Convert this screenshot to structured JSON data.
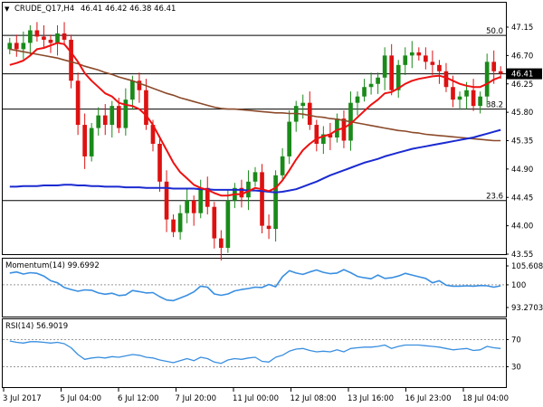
{
  "header": {
    "symbol": "CRUDE_Q17,H4",
    "ohlc": "46.41 46.42 46.38 46.41",
    "momentum_label": "Momentum(14) 99.6992",
    "rsi_label": "RSI(14) 56.9019"
  },
  "colors": {
    "up_candle": "#1a8a1a",
    "down_candle": "#dd1111",
    "sma_fast": "#ee1111",
    "sma_mid": "#8b4a2a",
    "sma_slow": "#1a2ad0",
    "momentum": "#3a8fe0",
    "rsi": "#3a8fe0",
    "level_line": "#000000"
  },
  "chart_data": [
    {
      "type": "candlestick",
      "panel": "price",
      "ylim": [
        43.55,
        47.15
      ],
      "y_ticks": [
        "47.15",
        "46.70",
        "46.25",
        "45.80",
        "45.35",
        "44.90",
        "44.45",
        "44.00",
        "43.55"
      ],
      "last_price_label": "46.41",
      "last_price": 46.41,
      "fib_levels": [
        {
          "label": "50.0",
          "value": 47.02
        },
        {
          "label": "38.2",
          "value": 45.85
        },
        {
          "label": "23.6",
          "value": 44.4
        }
      ],
      "horizontal_line": 46.41,
      "x_labels": [
        "3 Jul 2017",
        "5 Jul 04:00",
        "6 Jul 12:00",
        "7 Jul 20:00",
        "11 Jul 00:00",
        "12 Jul 08:00",
        "13 Jul 16:00",
        "16 Jul 23:00",
        "18 Jul 04:00"
      ],
      "closes": [
        46.9,
        46.8,
        46.9,
        47.1,
        47.0,
        46.95,
        46.9,
        47.05,
        46.95,
        46.3,
        45.6,
        45.1,
        45.55,
        45.75,
        45.6,
        45.9,
        45.55,
        46.0,
        46.3,
        46.15,
        45.6,
        45.3,
        44.7,
        44.1,
        43.9,
        44.2,
        44.4,
        44.2,
        44.6,
        44.3,
        43.8,
        43.65,
        44.4,
        44.6,
        44.45,
        44.7,
        44.85,
        44.0,
        43.95,
        44.8,
        45.1,
        45.65,
        45.9,
        45.95,
        45.6,
        45.3,
        45.45,
        45.4,
        45.7,
        45.35,
        45.95,
        46.05,
        46.2,
        46.25,
        46.35,
        46.7,
        46.15,
        46.55,
        46.7,
        46.75,
        46.7,
        46.6,
        46.55,
        46.45,
        46.2,
        46.0,
        46.05,
        46.15,
        45.9,
        46.05,
        46.6,
        46.45,
        46.41
      ],
      "overlays": {
        "sma_fast": [
          46.55,
          46.58,
          46.62,
          46.7,
          46.8,
          46.82,
          46.86,
          46.9,
          46.88,
          46.75,
          46.6,
          46.42,
          46.3,
          46.2,
          46.1,
          46.05,
          45.95,
          45.92,
          45.9,
          45.85,
          45.75,
          45.6,
          45.4,
          45.2,
          45.0,
          44.85,
          44.75,
          44.65,
          44.6,
          44.57,
          44.52,
          44.48,
          44.48,
          44.5,
          44.5,
          44.55,
          44.6,
          44.58,
          44.55,
          44.6,
          44.72,
          44.88,
          45.05,
          45.2,
          45.3,
          45.38,
          45.42,
          45.45,
          45.52,
          45.55,
          45.62,
          45.72,
          45.82,
          45.92,
          46.0,
          46.1,
          46.12,
          46.18,
          46.25,
          46.3,
          46.33,
          46.35,
          46.37,
          46.38,
          46.35,
          46.3,
          46.25,
          46.22,
          46.2,
          46.2,
          46.25,
          46.32,
          46.36
        ],
        "sma_mid": [
          46.8,
          46.78,
          46.76,
          46.74,
          46.72,
          46.7,
          46.68,
          46.66,
          46.63,
          46.6,
          46.57,
          46.53,
          46.5,
          46.47,
          46.43,
          46.4,
          46.36,
          46.33,
          46.3,
          46.26,
          46.22,
          46.18,
          46.14,
          46.1,
          46.07,
          46.03,
          46.0,
          45.97,
          45.94,
          45.91,
          45.88,
          45.86,
          45.85,
          45.85,
          45.84,
          45.83,
          45.82,
          45.81,
          45.8,
          45.79,
          45.79,
          45.78,
          45.78,
          45.77,
          45.75,
          45.73,
          45.72,
          45.7,
          45.69,
          45.67,
          45.65,
          45.63,
          45.61,
          45.59,
          45.57,
          45.55,
          45.53,
          45.51,
          45.5,
          45.48,
          45.47,
          45.45,
          45.44,
          45.43,
          45.42,
          45.41,
          45.4,
          45.39,
          45.38,
          45.37,
          45.36,
          45.35,
          45.35
        ],
        "sma_slow": [
          44.62,
          44.62,
          44.63,
          44.63,
          44.63,
          44.64,
          44.64,
          44.64,
          44.65,
          44.65,
          44.64,
          44.64,
          44.63,
          44.63,
          44.62,
          44.62,
          44.62,
          44.61,
          44.61,
          44.61,
          44.6,
          44.6,
          44.6,
          44.6,
          44.59,
          44.59,
          44.59,
          44.59,
          44.58,
          44.58,
          44.57,
          44.57,
          44.57,
          44.57,
          44.57,
          44.56,
          44.56,
          44.55,
          44.54,
          44.53,
          44.54,
          44.56,
          44.58,
          44.62,
          44.66,
          44.7,
          44.75,
          44.8,
          44.84,
          44.88,
          44.92,
          44.96,
          45.0,
          45.03,
          45.06,
          45.1,
          45.13,
          45.16,
          45.19,
          45.22,
          45.24,
          45.26,
          45.28,
          45.3,
          45.32,
          45.34,
          45.36,
          45.38,
          45.4,
          45.43,
          45.46,
          45.49,
          45.52
        ]
      }
    },
    {
      "type": "line",
      "panel": "momentum",
      "title": "Momentum(14) 99.6992",
      "ylim": [
        93.2703,
        105.6089
      ],
      "y_ticks": [
        "105.6089",
        "100",
        "93.2703"
      ],
      "reference_line": 100,
      "values": [
        103.5,
        103.8,
        103.2,
        103.6,
        103.4,
        102.6,
        101.2,
        100.6,
        99.2,
        98.6,
        98.1,
        98.5,
        98.4,
        97.6,
        97.2,
        97.5,
        96.8,
        97.0,
        98.3,
        98.0,
        97.6,
        97.7,
        96.5,
        95.5,
        95.3,
        96.1,
        96.9,
        97.9,
        99.6,
        99.3,
        97.3,
        96.9,
        97.3,
        98.2,
        98.6,
        98.9,
        99.3,
        99.2,
        100.1,
        99.4,
        102.4,
        104.2,
        103.5,
        103.1,
        103.8,
        104.4,
        103.7,
        103.3,
        103.5,
        104.5,
        103.6,
        102.5,
        102.1,
        101.8,
        102.9,
        101.9,
        102.1,
        102.6,
        103.4,
        102.9,
        102.4,
        101.9,
        100.6,
        101.2,
        99.9,
        99.6,
        99.6,
        99.7,
        99.6,
        99.8,
        99.7,
        99.3,
        99.7
      ]
    },
    {
      "type": "line",
      "panel": "rsi",
      "title": "RSI(14) 56.9019",
      "ylim": [
        0,
        100
      ],
      "y_ticks": [
        "70",
        "30"
      ],
      "levels": [
        70,
        30
      ],
      "values": [
        68,
        66,
        65,
        67,
        67,
        66,
        65,
        66,
        64,
        58,
        48,
        41,
        43,
        44,
        43,
        45,
        44,
        46,
        48,
        47,
        44,
        43,
        40,
        38,
        36,
        39,
        42,
        39,
        44,
        42,
        37,
        35,
        40,
        42,
        41,
        43,
        44,
        38,
        37,
        44,
        47,
        53,
        56,
        57,
        54,
        52,
        53,
        52,
        55,
        52,
        57,
        58,
        59,
        59,
        60,
        62,
        57,
        60,
        62,
        62,
        62,
        61,
        60,
        59,
        57,
        55,
        56,
        57,
        54,
        55,
        60,
        58,
        57
      ]
    }
  ]
}
